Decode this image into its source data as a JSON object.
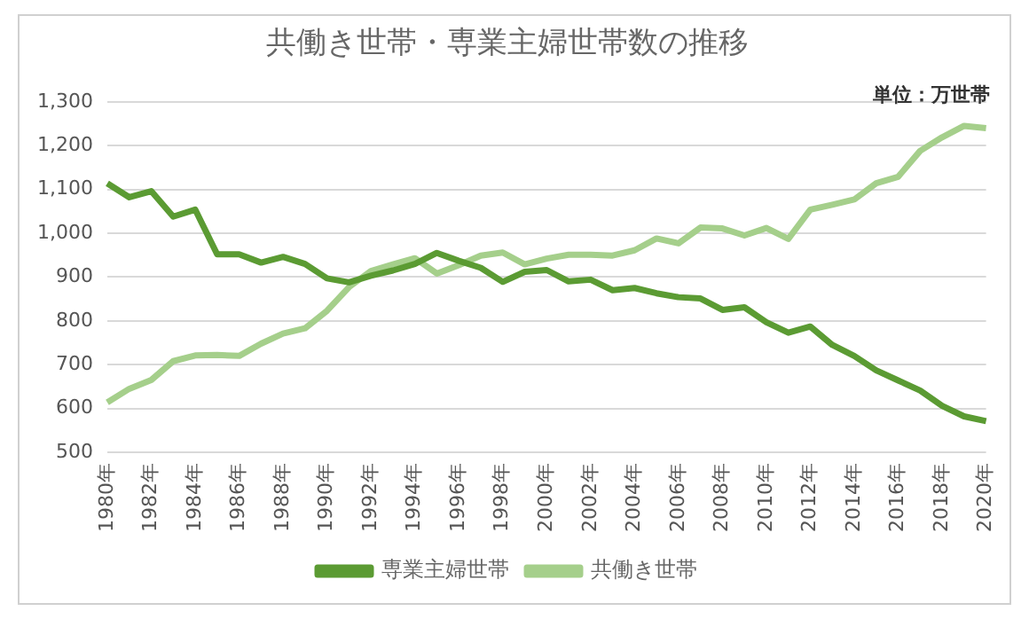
{
  "chart_data": {
    "type": "line",
    "title": "共働き世帯・専業主婦世帯数の推移",
    "annotations": [
      "単位：万世帯"
    ],
    "categories": [
      "1980年",
      null,
      "1982年",
      null,
      "1984年",
      null,
      "1986年",
      null,
      "1988年",
      null,
      "1990年",
      null,
      "1992年",
      null,
      "1994年",
      null,
      "1996年",
      null,
      "1998年",
      null,
      "2000年",
      null,
      "2002年",
      null,
      "2004年",
      null,
      "2006年",
      null,
      "2008年",
      null,
      "2010年",
      null,
      "2012年",
      null,
      "2014年",
      null,
      "2016年",
      null,
      "2018年",
      null,
      "2020年"
    ],
    "series": [
      {
        "name": "専業主婦世帯",
        "color": "#5b9b33",
        "values": [
          1114,
          1082,
          1096,
          1038,
          1054,
          952,
          952,
          933,
          946,
          930,
          897,
          888,
          903,
          915,
          930,
          955,
          937,
          921,
          889,
          912,
          916,
          890,
          894,
          870,
          875,
          863,
          854,
          851,
          825,
          831,
          797,
          773,
          787,
          745,
          720,
          687,
          664,
          641,
          606,
          582,
          571
        ]
      },
      {
        "name": "共働き世帯",
        "color": "#a5cf8b",
        "values": [
          614,
          645,
          665,
          708,
          721,
          722,
          720,
          748,
          771,
          783,
          823,
          877,
          914,
          929,
          943,
          908,
          927,
          949,
          956,
          929,
          942,
          951,
          951,
          949,
          961,
          988,
          977,
          1013,
          1011,
          995,
          1012,
          987,
          1054,
          1065,
          1077,
          1114,
          1129,
          1188,
          1219,
          1245,
          1240
        ]
      }
    ],
    "ylim": [
      500,
      1300
    ],
    "yticks": [
      500,
      {
        "value": 600,
        "label": "600"
      },
      {
        "value": 700,
        "label": "700"
      },
      {
        "value": 800,
        "label": "800"
      },
      {
        "value": 900,
        "label": "900"
      },
      {
        "value": 1000,
        "label": "1,000"
      },
      {
        "value": 1100,
        "label": "1,100"
      },
      {
        "value": 1200,
        "label": "1,200"
      },
      {
        "value": 1300,
        "label": "1,300"
      }
    ],
    "grid": "y",
    "legend": "bottom",
    "marker": "none",
    "line_style": "solid"
  }
}
